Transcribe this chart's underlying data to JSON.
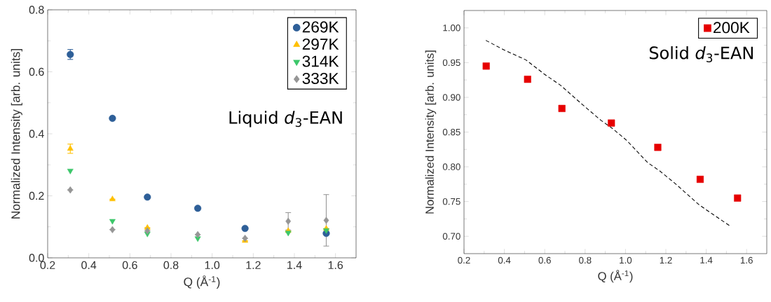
{
  "chart_data": [
    {
      "type": "scatter",
      "xlabel": "Q (Å$^{-1}$)",
      "ylabel": "Normalized Intensity [arb. units]",
      "xlim": [
        0.2,
        1.7
      ],
      "ylim": [
        0,
        0.8
      ],
      "xticks": [
        {
          "value": 0.2,
          "label": "0.2"
        },
        {
          "value": 0.4,
          "label": "0.4"
        },
        {
          "value": 0.6,
          "label": "0.6"
        },
        {
          "value": 0.8,
          "label": "0.8"
        },
        {
          "value": 1.0,
          "label": "1.0"
        },
        {
          "value": 1.2,
          "label": "1.2"
        },
        {
          "value": 1.4,
          "label": "1.4"
        },
        {
          "value": 1.6,
          "label": "1.6"
        }
      ],
      "yticks": [
        {
          "value": 0,
          "label": "0.0"
        },
        {
          "value": 0.2,
          "label": "0.2"
        },
        {
          "value": 0.4,
          "label": "0.4"
        },
        {
          "value": 0.6,
          "label": "0.6"
        },
        {
          "value": 0.8,
          "label": "0.8"
        }
      ],
      "x": [
        0.31,
        0.515,
        0.685,
        0.93,
        1.16,
        1.37,
        1.555
      ],
      "series": [
        {
          "name": "269K",
          "color": "#2e5f98",
          "marker": "circle",
          "values": [
            0.656,
            0.45,
            0.196,
            0.16,
            0.095,
            null,
            0.079
          ],
          "errors": [
            0.016,
            null,
            null,
            null,
            null,
            null,
            null
          ]
        },
        {
          "name": "297K",
          "color": "#ffc000",
          "marker": "triangle",
          "values": [
            0.352,
            0.189,
            0.097,
            null,
            0.055,
            0.087,
            0.094
          ],
          "errors": [
            0.015,
            null,
            null,
            null,
            null,
            null,
            null
          ]
        },
        {
          "name": "314K",
          "color": "#3cc76a",
          "marker": "triangle-down",
          "values": [
            0.281,
            0.119,
            0.078,
            0.063,
            null,
            0.081,
            0.089
          ]
        },
        {
          "name": "333K",
          "color": "#969696",
          "marker": "diamond",
          "values": [
            0.219,
            0.091,
            0.087,
            0.075,
            0.063,
            0.118,
            0.121
          ],
          "errors": [
            null,
            null,
            null,
            null,
            null,
            0.028,
            0.083
          ]
        }
      ],
      "legend": "top right",
      "annotations": [
        "Liquid *d*$_{3}$-EAN"
      ]
    },
    {
      "type": "scatter",
      "xlabel": "Q (Å$^{-1}$)",
      "ylabel": "Normalized Intensity [arb. units]",
      "xlim": [
        0.2,
        1.7
      ],
      "ylim": [
        0.675,
        1.025
      ],
      "xticks": [
        {
          "value": 0.2,
          "label": "0.2"
        },
        {
          "value": 0.4,
          "label": "0.4"
        },
        {
          "value": 0.6,
          "label": "0.6"
        },
        {
          "value": 0.8,
          "label": "0.8"
        },
        {
          "value": 1.0,
          "label": "1.0"
        },
        {
          "value": 1.2,
          "label": "1.2"
        },
        {
          "value": 1.4,
          "label": "1.4"
        },
        {
          "value": 1.6,
          "label": "1.6"
        }
      ],
      "yticks": [
        {
          "value": 0.7,
          "label": "0.70"
        },
        {
          "value": 0.75,
          "label": "0.75"
        },
        {
          "value": 0.8,
          "label": "0.80"
        },
        {
          "value": 0.85,
          "label": "0.85"
        },
        {
          "value": 0.9,
          "label": "0.90"
        },
        {
          "value": 0.95,
          "label": "0.95"
        },
        {
          "value": 1.0,
          "label": "1.00"
        }
      ],
      "series": [
        {
          "name": "200K",
          "color": "#e60000",
          "marker": "square",
          "x": [
            0.31,
            0.515,
            0.685,
            0.93,
            1.16,
            1.37,
            1.555
          ],
          "values": [
            0.945,
            0.926,
            0.884,
            0.863,
            0.828,
            0.782,
            0.755
          ]
        },
        {
          "type": "line",
          "color": "#000000",
          "line_style": "dashed",
          "marker": "none",
          "x": [
            0.308,
            0.4,
            0.506,
            0.6,
            0.68,
            0.785,
            0.878,
            0.936,
            1.006,
            1.11,
            1.17,
            1.25,
            1.366,
            1.436,
            1.517
          ],
          "values": [
            0.982,
            0.968,
            0.954,
            0.933,
            0.917,
            0.89,
            0.867,
            0.855,
            0.838,
            0.806,
            0.794,
            0.775,
            0.745,
            0.731,
            0.715
          ]
        }
      ],
      "legend": "top right",
      "annotations": [
        "Solid *d*$_{3}$-EAN"
      ]
    }
  ]
}
